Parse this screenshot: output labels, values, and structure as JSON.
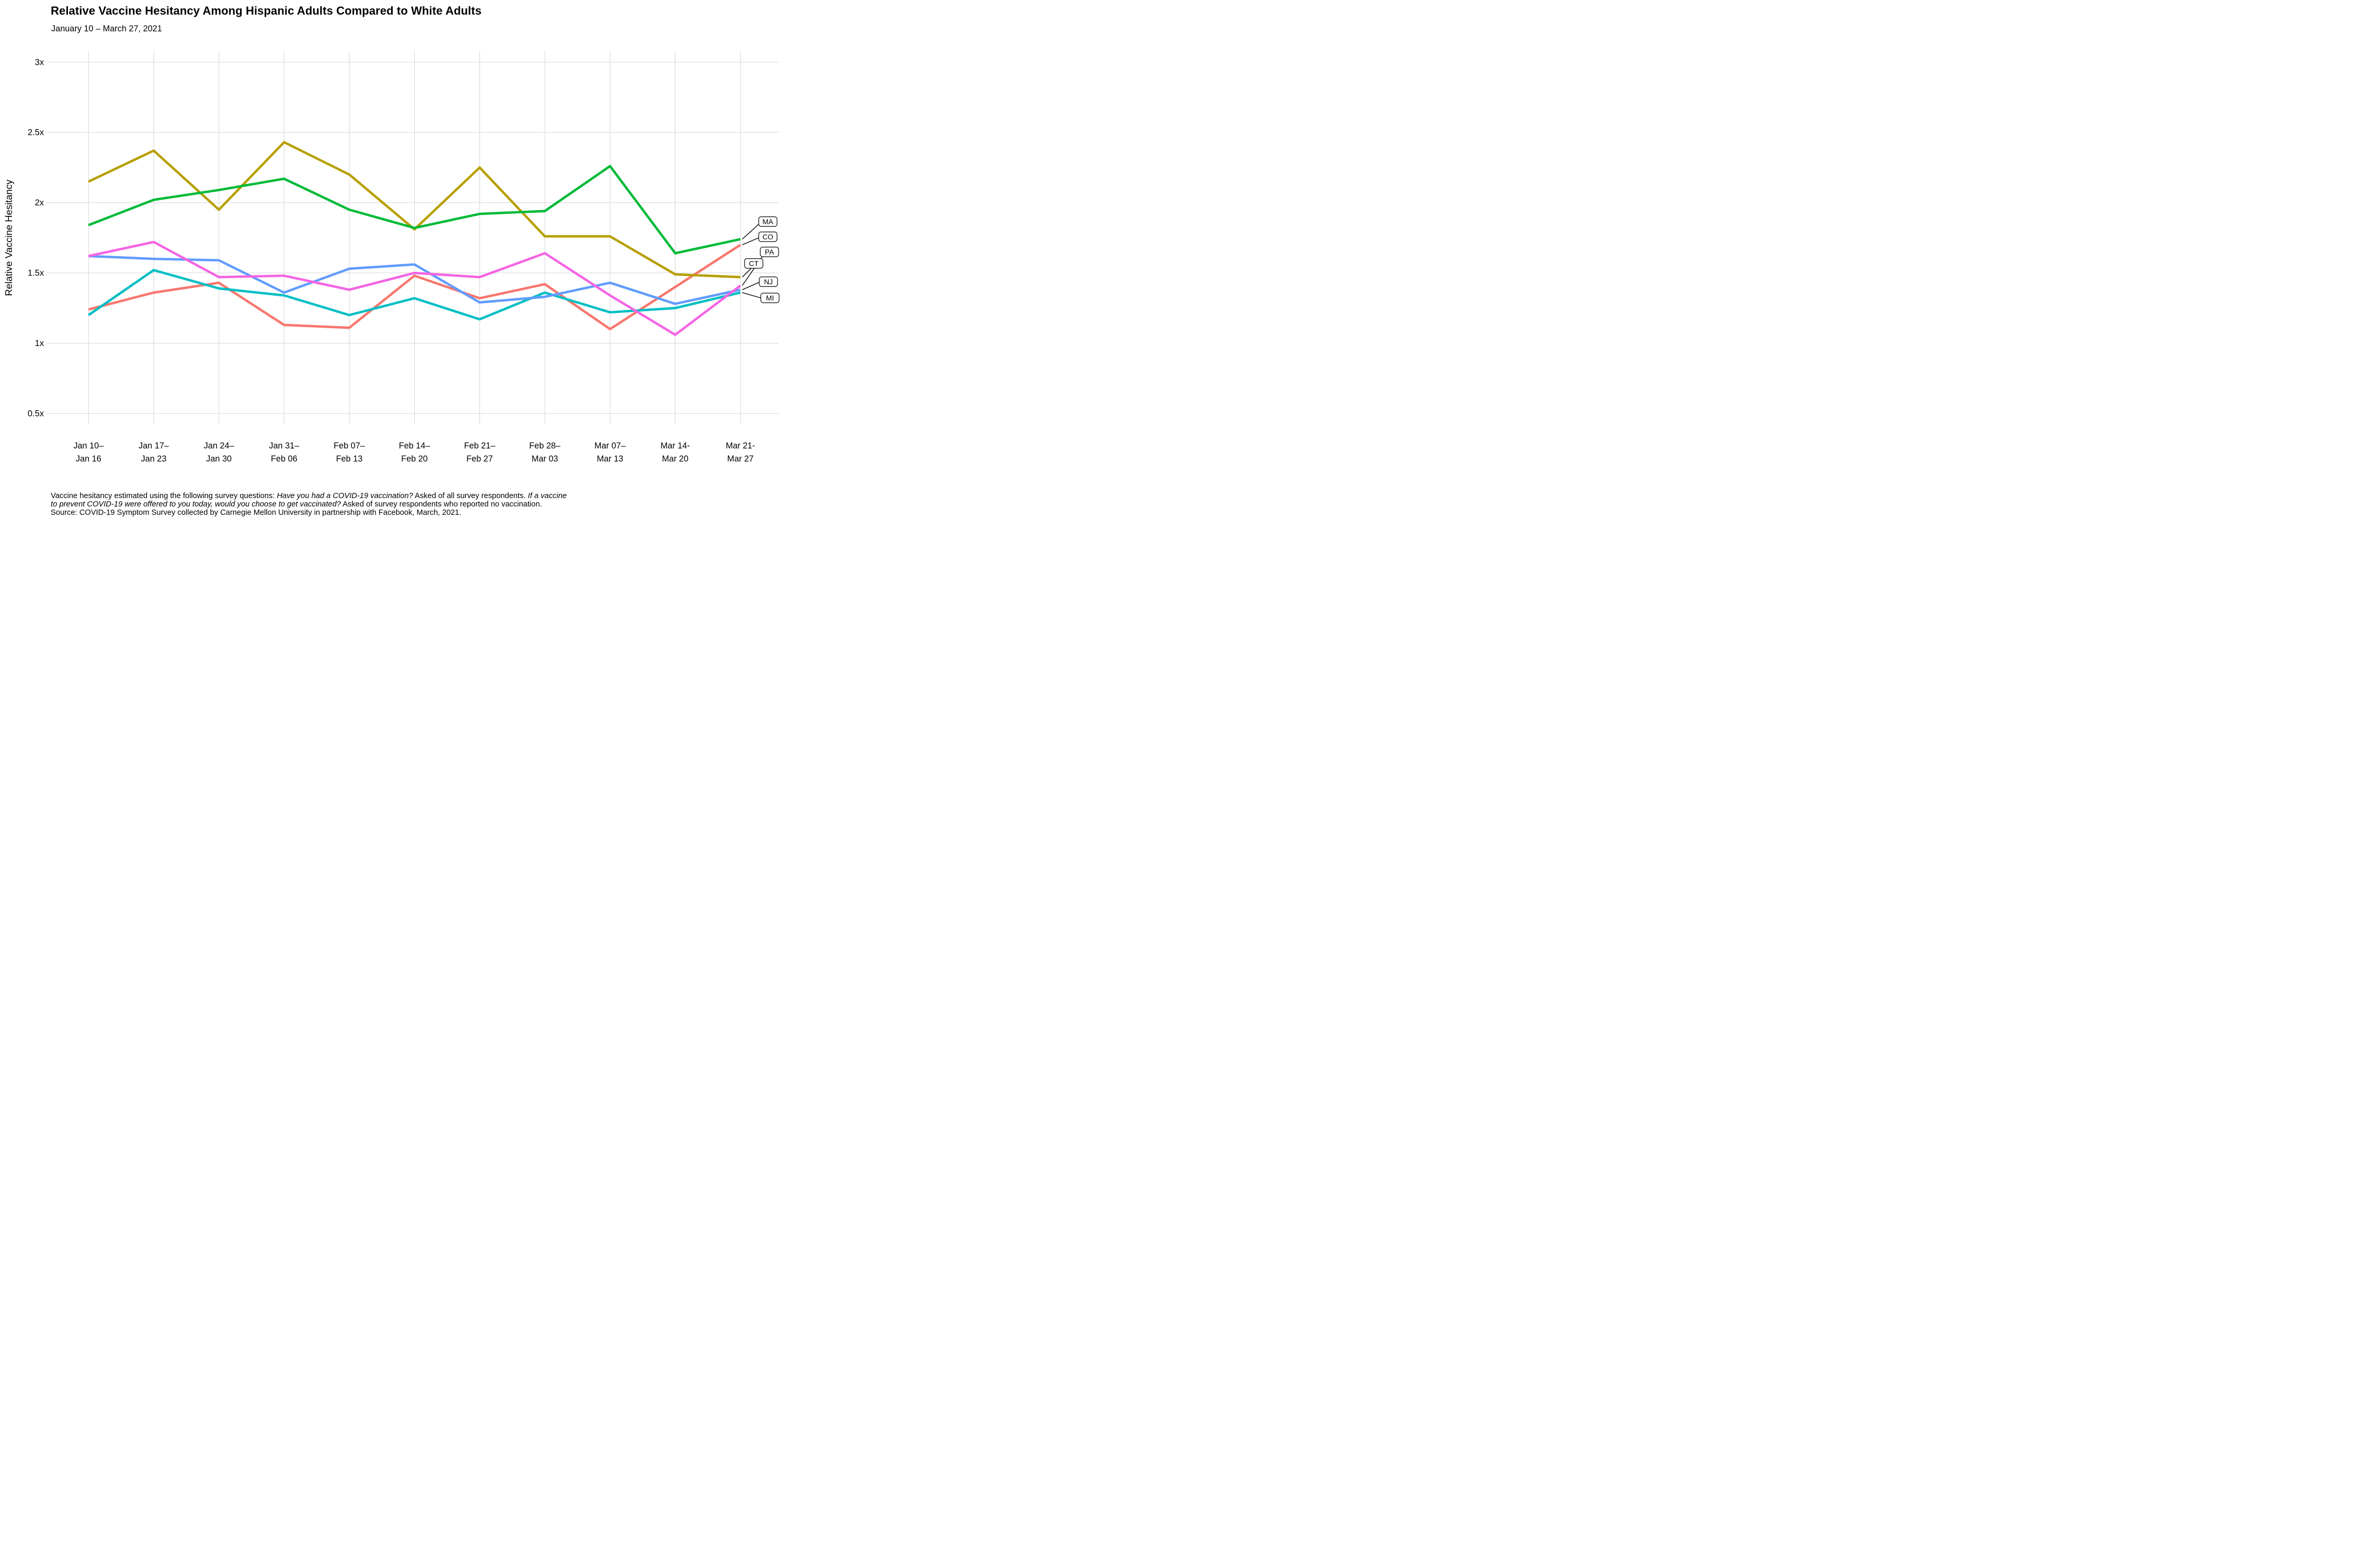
{
  "chart_data": {
    "type": "line",
    "title": "Relative Vaccine Hesitancy Among Hispanic Adults Compared to White Adults",
    "subtitle": "January 10 – March 27, 2021",
    "ylabel": "Relative Vaccine Hesitancy",
    "xlabel": "",
    "ylim": [
      0.5,
      3
    ],
    "grid": true,
    "grid_color": "#DDDDDD",
    "background_color": "#FFFFFF",
    "ytick_values": [
      3,
      2.5,
      2,
      1.5,
      1,
      0.5
    ],
    "ytick_labels": [
      "3x",
      "2.5x",
      "2x",
      "1.5x",
      "1x",
      "0.5x"
    ],
    "categories": [
      "Jan 10–Jan 16",
      "Jan 17–Jan 23",
      "Jan 24–Jan 30",
      "Jan 31–Feb 06",
      "Feb 07–Feb 13",
      "Feb 14–Feb 20",
      "Feb 21–Feb 27",
      "Feb 28–Mar 03",
      "Mar 07–Mar 13",
      "Mar 14-Mar 20",
      "Mar 21-Mar 27"
    ],
    "categories_two_line": [
      [
        "Jan 10–",
        "Jan 16"
      ],
      [
        "Jan 17–",
        "Jan 23"
      ],
      [
        "Jan 24–",
        "Jan 30"
      ],
      [
        "Jan 31–",
        "Feb 06"
      ],
      [
        "Feb 07–",
        "Feb 13"
      ],
      [
        "Feb 14–",
        "Feb 20"
      ],
      [
        "Feb 21–",
        "Feb 27"
      ],
      [
        "Feb 28–",
        "Mar 03"
      ],
      [
        "Mar 07–",
        "Mar 13"
      ],
      [
        "Mar 14-",
        "Mar 20"
      ],
      [
        "Mar 21-",
        "Mar 27"
      ]
    ],
    "series": [
      {
        "name": "CO",
        "color": "#F8766D",
        "values": [
          1.24,
          1.36,
          1.43,
          1.13,
          1.11,
          1.48,
          1.32,
          1.42,
          1.1,
          1.4,
          1.7
        ]
      },
      {
        "name": "CT",
        "color": "#B79F00",
        "values": [
          2.15,
          2.37,
          1.95,
          2.43,
          2.2,
          1.81,
          2.25,
          1.76,
          1.76,
          1.49,
          1.47
        ]
      },
      {
        "name": "MA",
        "color": "#00BA38",
        "values": [
          1.84,
          2.02,
          2.09,
          2.17,
          1.95,
          1.82,
          1.92,
          1.94,
          2.26,
          1.64,
          1.74
        ]
      },
      {
        "name": "MI",
        "color": "#00BFC4",
        "values": [
          1.2,
          1.52,
          1.39,
          1.34,
          1.2,
          1.32,
          1.17,
          1.36,
          1.22,
          1.25,
          1.36
        ]
      },
      {
        "name": "NJ",
        "color": "#619CFF",
        "values": [
          1.62,
          1.6,
          1.59,
          1.36,
          1.53,
          1.56,
          1.29,
          1.33,
          1.43,
          1.28,
          1.38
        ]
      },
      {
        "name": "PA",
        "color": "#F564E3",
        "values": [
          1.62,
          1.72,
          1.47,
          1.48,
          1.38,
          1.5,
          1.47,
          1.64,
          1.34,
          1.06,
          1.41
        ]
      }
    ],
    "end_labels_top_to_bottom": [
      "MA",
      "CO",
      "PA",
      "CT",
      "NJ",
      "MI"
    ],
    "end_label_box": {
      "fill": "#FFFFFF",
      "border": "#000000",
      "text_color": "#000000"
    },
    "legend_position": "right-end-labels"
  },
  "footnote": {
    "lines": [
      {
        "segments": [
          {
            "text": "Vaccine hesitancy estimated using the following survey questions: ",
            "italic": false
          },
          {
            "text": "Have you had a COVID-19 vaccination?",
            "italic": true
          },
          {
            "text": " Asked of all survey respondents. ",
            "italic": false
          },
          {
            "text": "If a vaccine",
            "italic": true
          }
        ]
      },
      {
        "segments": [
          {
            "text": "to prevent COVID-19 were offered to you today, would you choose to get vaccinated?",
            "italic": true
          },
          {
            "text": " Asked of survey respondents who reported no vaccination.",
            "italic": false
          }
        ]
      },
      {
        "segments": [
          {
            "text": "Source: COVID-19 Symptom Survey collected by Carnegie Mellon University in partnership with Facebook, March, 2021.",
            "italic": false
          }
        ]
      }
    ]
  }
}
